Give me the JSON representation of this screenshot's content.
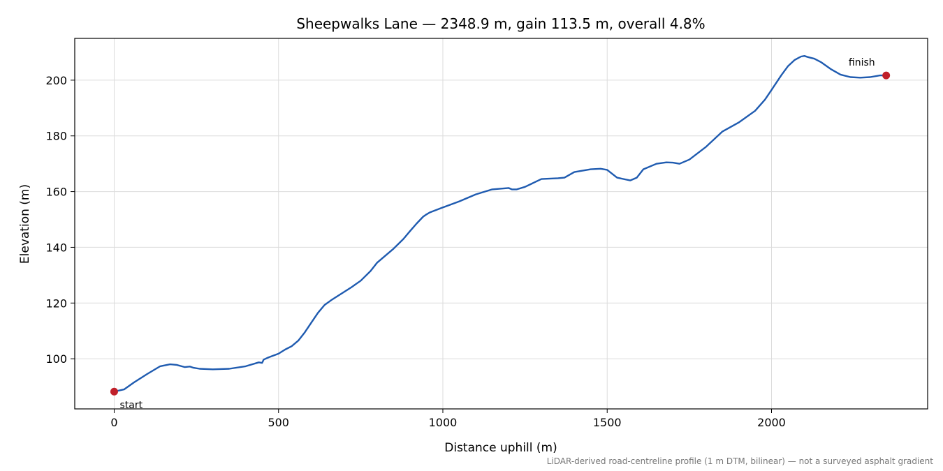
{
  "chart_data": {
    "type": "line",
    "title": "Sheepwalks Lane — 2348.9 m, gain 113.5 m, overall 4.8%",
    "xlabel": "Distance uphill (m)",
    "ylabel": "Elevation (m)",
    "xlim": [
      -120,
      2475
    ],
    "ylim": [
      82,
      215
    ],
    "x_ticks": [
      0,
      500,
      1000,
      1500,
      2000
    ],
    "y_ticks": [
      100,
      120,
      140,
      160,
      180,
      200
    ],
    "grid": true,
    "footnote": "LiDAR-derived road-centreline profile (1 m DTM, bilinear) — not a surveyed asphalt gradient",
    "series": [
      {
        "color": "#1f5bb0",
        "x": [
          0,
          30,
          60,
          100,
          140,
          170,
          190,
          215,
          230,
          240,
          260,
          300,
          350,
          400,
          440,
          450,
          455,
          470,
          500,
          520,
          540,
          560,
          580,
          600,
          620,
          640,
          660,
          680,
          700,
          720,
          750,
          780,
          800,
          820,
          850,
          880,
          900,
          920,
          940,
          950,
          960,
          1000,
          1050,
          1100,
          1150,
          1200,
          1210,
          1225,
          1250,
          1300,
          1350,
          1370,
          1400,
          1450,
          1480,
          1500,
          1530,
          1570,
          1590,
          1610,
          1650,
          1680,
          1700,
          1720,
          1750,
          1800,
          1850,
          1900,
          1950,
          1980,
          2000,
          2030,
          2050,
          2070,
          2090,
          2100,
          2110,
          2120,
          2130,
          2150,
          2180,
          2210,
          2240,
          2270,
          2300,
          2330,
          2348.9
        ],
        "y": [
          88.2,
          89.0,
          91.5,
          94.5,
          97.3,
          98.0,
          97.8,
          97.0,
          97.2,
          96.8,
          96.4,
          96.2,
          96.4,
          97.3,
          98.7,
          98.5,
          99.7,
          100.5,
          101.8,
          103.3,
          104.5,
          106.5,
          109.5,
          113.0,
          116.5,
          119.3,
          121.0,
          122.5,
          124.0,
          125.5,
          128.0,
          131.5,
          134.5,
          136.5,
          139.5,
          143.0,
          145.8,
          148.5,
          151.0,
          151.8,
          152.5,
          154.3,
          156.5,
          159.0,
          160.8,
          161.3,
          160.8,
          160.8,
          161.7,
          164.5,
          164.8,
          165.0,
          167.0,
          168.0,
          168.2,
          167.8,
          165.0,
          164.0,
          165.0,
          168.0,
          170.0,
          170.5,
          170.4,
          170.0,
          171.5,
          176.0,
          181.5,
          184.8,
          189.0,
          193.0,
          196.5,
          201.8,
          205.0,
          207.2,
          208.5,
          208.7,
          208.3,
          208.0,
          207.7,
          206.5,
          204.0,
          202.0,
          201.1,
          200.9,
          201.1,
          201.7,
          201.7
        ]
      }
    ],
    "markers": [
      {
        "label": "start",
        "x": 0,
        "y": 88.2,
        "color": "#c0202a"
      },
      {
        "label": "finish",
        "x": 2348.9,
        "y": 201.7,
        "color": "#c0202a"
      }
    ]
  }
}
